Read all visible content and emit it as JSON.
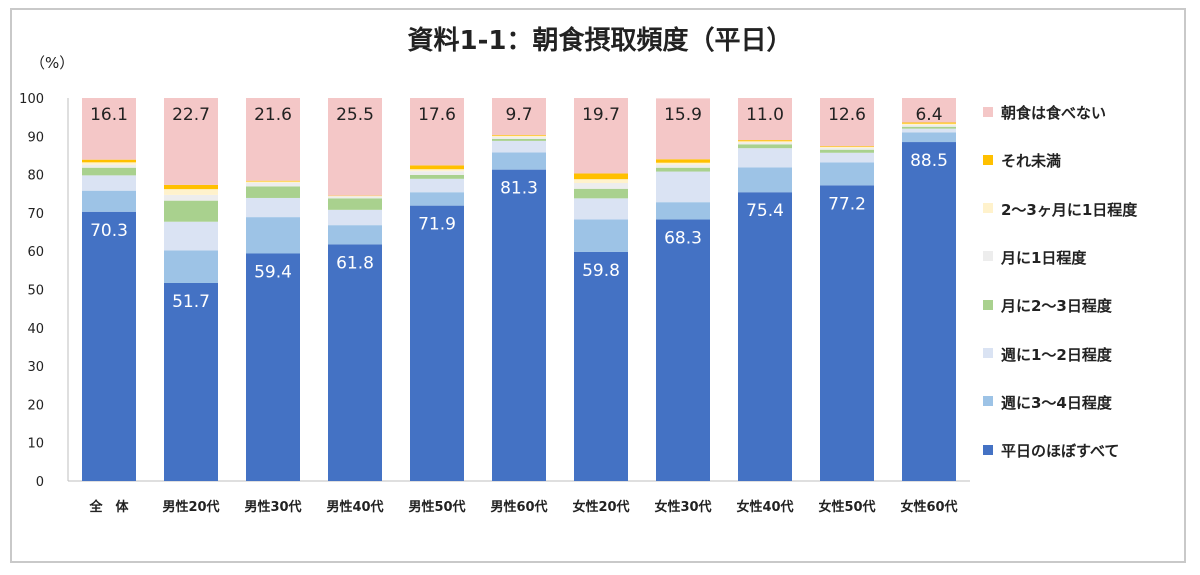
{
  "chart_data": {
    "type": "bar",
    "stacked": true,
    "title": "資料1-1：朝食摂取頻度（平日）",
    "unit_label": "（%）",
    "ylim": [
      0,
      100
    ],
    "yticks": [
      0,
      10,
      20,
      30,
      40,
      50,
      60,
      70,
      80,
      90,
      100
    ],
    "grid": false,
    "legend_position": "right",
    "categories": [
      "全　体",
      "男性20代",
      "男性30代",
      "男性40代",
      "男性50代",
      "男性60代",
      "女性20代",
      "女性30代",
      "女性40代",
      "女性50代",
      "女性60代"
    ],
    "series": [
      {
        "name": "平日のほぼすべて",
        "color": "#4472c4",
        "values": [
          70.3,
          51.7,
          59.4,
          61.8,
          71.9,
          81.3,
          59.8,
          68.3,
          75.4,
          77.2,
          88.5
        ],
        "labeled": true,
        "label_color": "#ffffff"
      },
      {
        "name": "週に3～4日程度",
        "color": "#9dc3e6",
        "values": [
          5.5,
          8.5,
          9.5,
          5.0,
          3.5,
          4.5,
          8.5,
          4.5,
          6.5,
          6.0,
          2.5
        ]
      },
      {
        "name": "週に1～2日程度",
        "color": "#dae3f3",
        "values": [
          4.0,
          7.5,
          5.0,
          4.0,
          3.5,
          3.0,
          5.5,
          8.0,
          5.0,
          2.5,
          1.0
        ]
      },
      {
        "name": "月に2～3日程度",
        "color": "#a9d18e",
        "values": [
          2.0,
          5.5,
          3.0,
          3.0,
          1.0,
          0.5,
          2.5,
          1.0,
          1.0,
          0.8,
          0.5
        ]
      },
      {
        "name": "月に1日程度",
        "color": "#ededed",
        "values": [
          0.8,
          1.5,
          1.0,
          0.5,
          1.0,
          0.5,
          1.5,
          0.8,
          0.5,
          0.5,
          0.5
        ]
      },
      {
        "name": "2～3ヶ月に1日程度",
        "color": "#fff2cc",
        "values": [
          0.6,
          1.5,
          0.3,
          0.1,
          0.5,
          0.3,
          1.0,
          0.5,
          0.3,
          0.2,
          0.3
        ]
      },
      {
        "name": "それ未満",
        "color": "#ffc000",
        "values": [
          0.7,
          1.1,
          0.2,
          0.1,
          1.0,
          0.2,
          1.5,
          0.9,
          0.3,
          0.2,
          0.3
        ]
      },
      {
        "name": "朝食は食べない",
        "color": "#f4c7c7",
        "values": [
          16.1,
          22.7,
          21.6,
          25.5,
          17.6,
          9.7,
          19.7,
          15.9,
          11.0,
          12.6,
          6.4
        ],
        "labeled": true,
        "label_color": "#222222"
      }
    ]
  }
}
